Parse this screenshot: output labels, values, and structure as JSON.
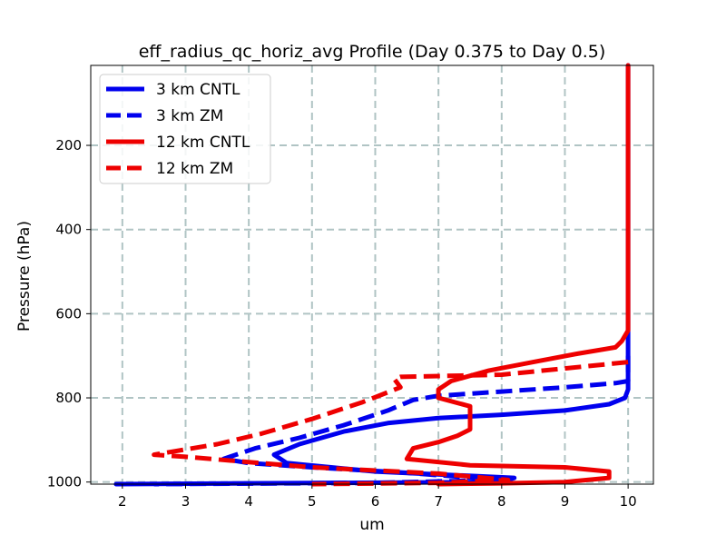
{
  "chart_data": {
    "type": "line",
    "title": "eff_radius_qc_horiz_avg Profile (Day 0.375 to Day 0.5)",
    "xlabel": "um",
    "ylabel": "Pressure (hPa)",
    "xlim": [
      1.5,
      10.4
    ],
    "ylim": [
      1005,
      10
    ],
    "y_inverted": true,
    "grid": true,
    "legend_position": "top-left",
    "x_ticks": [
      2,
      3,
      4,
      5,
      6,
      7,
      8,
      9,
      10
    ],
    "y_ticks": [
      200,
      400,
      600,
      800,
      1000
    ],
    "series": [
      {
        "name": "3 km CNTL",
        "color": "#0000ee",
        "style": "solid",
        "points": [
          [
            10,
            10
          ],
          [
            10,
            200
          ],
          [
            10,
            400
          ],
          [
            10,
            600
          ],
          [
            10,
            700
          ],
          [
            10,
            760
          ],
          [
            10.0,
            780
          ],
          [
            9.95,
            800
          ],
          [
            9.7,
            815
          ],
          [
            9,
            830
          ],
          [
            8,
            840
          ],
          [
            7,
            848
          ],
          [
            6.2,
            860
          ],
          [
            5.5,
            880
          ],
          [
            4.8,
            910
          ],
          [
            4.4,
            935
          ],
          [
            4.6,
            955
          ],
          [
            6,
            975
          ],
          [
            8.2,
            990
          ],
          [
            8,
            1000
          ],
          [
            4,
            1003
          ],
          [
            1.9,
            1005
          ]
        ]
      },
      {
        "name": "3 km ZM",
        "color": "#0000ee",
        "style": "dashed",
        "points": [
          [
            10,
            700
          ],
          [
            10,
            760
          ],
          [
            9.8,
            765
          ],
          [
            9,
            775
          ],
          [
            8,
            785
          ],
          [
            7,
            795
          ],
          [
            6.6,
            805
          ],
          [
            6.2,
            830
          ],
          [
            5.5,
            865
          ],
          [
            4.8,
            895
          ],
          [
            4.1,
            920
          ],
          [
            3.6,
            945
          ],
          [
            4,
            955
          ],
          [
            5,
            965
          ],
          [
            6.5,
            978
          ],
          [
            8,
            995
          ],
          [
            6,
            1002
          ],
          [
            2.5,
            1005
          ]
        ]
      },
      {
        "name": "12 km CNTL",
        "color": "#ee0000",
        "style": "solid",
        "points": [
          [
            10,
            10
          ],
          [
            10,
            200
          ],
          [
            10,
            400
          ],
          [
            10,
            600
          ],
          [
            10,
            640
          ],
          [
            9.9,
            665
          ],
          [
            9.8,
            680
          ],
          [
            9.2,
            695
          ],
          [
            8.5,
            715
          ],
          [
            7.8,
            735
          ],
          [
            7.2,
            760
          ],
          [
            7.0,
            780
          ],
          [
            7.0,
            800
          ],
          [
            7.5,
            820
          ],
          [
            7.5,
            850
          ],
          [
            7.5,
            875
          ],
          [
            7.3,
            890
          ],
          [
            7.0,
            905
          ],
          [
            6.6,
            920
          ],
          [
            6.5,
            945
          ],
          [
            7.5,
            960
          ],
          [
            9,
            965
          ],
          [
            9.7,
            975
          ],
          [
            9.7,
            990
          ],
          [
            9,
            1000
          ],
          [
            8,
            1003
          ],
          [
            7,
            1005
          ]
        ]
      },
      {
        "name": "12 km ZM",
        "color": "#ee0000",
        "style": "dashed",
        "points": [
          [
            10,
            715
          ],
          [
            9,
            730
          ],
          [
            8,
            745
          ],
          [
            6.4,
            750
          ],
          [
            6.3,
            755
          ],
          [
            6.4,
            775
          ],
          [
            5.8,
            810
          ],
          [
            5.0,
            850
          ],
          [
            4.2,
            885
          ],
          [
            3.5,
            910
          ],
          [
            2.5,
            935
          ],
          [
            3,
            940
          ],
          [
            5,
            965
          ],
          [
            7,
            980
          ],
          [
            8.1,
            995
          ],
          [
            7,
            1002
          ],
          [
            5,
            1005
          ]
        ]
      }
    ]
  }
}
